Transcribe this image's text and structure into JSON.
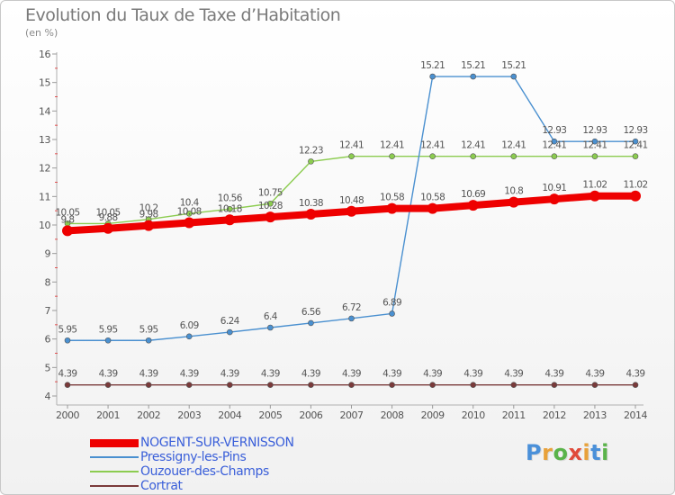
{
  "title": "Evolution du Taux de Taxe d’Habitation",
  "unit": "(en %)",
  "logo": {
    "text": "Proxiti",
    "letter_colors": [
      "#4a90d9",
      "#e8a13a",
      "#5ab34a",
      "#e04a3a",
      "#e8a13a",
      "#4a90d9",
      "#5ab34a"
    ]
  },
  "chart_data": {
    "type": "line",
    "x": [
      2000,
      2001,
      2002,
      2003,
      2004,
      2005,
      2006,
      2007,
      2008,
      2009,
      2010,
      2011,
      2012,
      2013,
      2014
    ],
    "ylim": [
      4,
      16
    ],
    "yticks": [
      4,
      5,
      6,
      7,
      8,
      9,
      10,
      11,
      12,
      13,
      14,
      15,
      16
    ],
    "grid": false,
    "legend": "bottom-left",
    "series": [
      {
        "name": "NOGENT-SUR-VERNISSON",
        "color": "#ee0000",
        "labels": [
          "9.8",
          "9.88",
          "9.98",
          "10.08",
          "10.18",
          "10.28",
          "10.38",
          "10.48",
          "10.58",
          "10.58",
          "10.69",
          "10.8",
          "10.91",
          "11.02",
          "11.02"
        ],
        "values": [
          9.8,
          9.88,
          9.98,
          10.08,
          10.18,
          10.28,
          10.38,
          10.48,
          10.58,
          10.58,
          10.69,
          10.8,
          10.91,
          11.02,
          11.02
        ]
      },
      {
        "name": "Pressigny-les-Pins",
        "color": "#4a90d0",
        "labels": [
          "5.95",
          "5.95",
          "5.95",
          "6.09",
          "6.24",
          "6.4",
          "6.56",
          "6.72",
          "6.89",
          "15.21",
          "15.21",
          "15.21",
          "12.93",
          "12.93",
          "12.93"
        ],
        "values": [
          5.95,
          5.95,
          5.95,
          6.09,
          6.24,
          6.4,
          6.56,
          6.72,
          6.89,
          15.21,
          15.21,
          15.21,
          12.93,
          12.93,
          12.93
        ]
      },
      {
        "name": "Ouzouer-des-Champs",
        "color": "#8ccc50",
        "labels": [
          "10.05",
          "10.05",
          "10.2",
          "10.4",
          "10.56",
          "10.75",
          "12.23",
          "12.41",
          "12.41",
          "12.41",
          "12.41",
          "12.41",
          "12.41",
          "12.41",
          "12.41"
        ],
        "values": [
          10.05,
          10.05,
          10.2,
          10.4,
          10.56,
          10.75,
          12.23,
          12.41,
          12.41,
          12.41,
          12.41,
          12.41,
          12.41,
          12.41,
          12.41
        ]
      },
      {
        "name": "Cortrat",
        "color": "#7a3a3a",
        "labels": [
          "4.39",
          "4.39",
          "4.39",
          "4.39",
          "4.39",
          "4.39",
          "4.39",
          "4.39",
          "4.39",
          "4.39",
          "4.39",
          "4.39",
          "4.39",
          "4.39",
          "4.39"
        ],
        "values": [
          4.39,
          4.39,
          4.39,
          4.39,
          4.39,
          4.39,
          4.39,
          4.39,
          4.39,
          4.39,
          4.39,
          4.39,
          4.39,
          4.39,
          4.39
        ]
      }
    ]
  }
}
